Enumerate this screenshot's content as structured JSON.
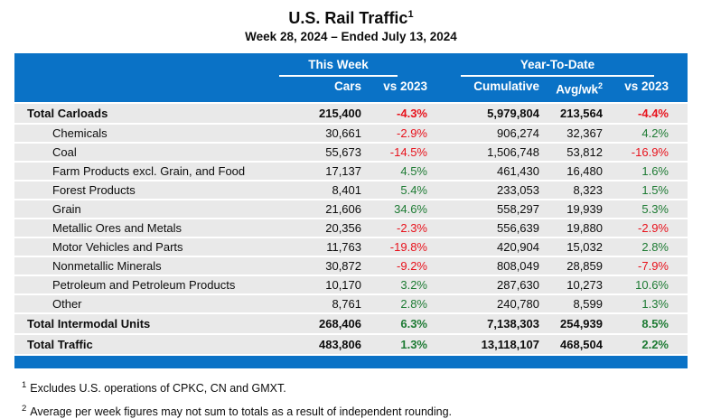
{
  "page": {
    "title": "U.S. Rail Traffic",
    "title_footnote_marker": "1",
    "subtitle": "Week 28, 2024 – Ended July 13, 2024"
  },
  "colors": {
    "header_blue": "#0a72c6",
    "row_gray": "#e9e9e9",
    "negative_red": "#e8121c",
    "positive_green": "#1e7b34"
  },
  "table": {
    "group_headers": {
      "this_week": "This Week",
      "year_to_date": "Year-To-Date"
    },
    "columns": {
      "cars": "Cars",
      "vs2023": "vs 2023",
      "cumulative": "Cumulative",
      "avgwk": "Avg/wk",
      "avgwk_footnote_marker": "2",
      "ytd_vs2023": "vs 2023"
    },
    "rows": [
      {
        "label": "Total Carloads",
        "type": "total",
        "cars": "215,400",
        "vs2023": "-4.3%",
        "cumulative": "5,979,804",
        "avgwk": "213,564",
        "ytd_vs2023": "-4.4%"
      },
      {
        "label": "Chemicals",
        "type": "sub",
        "cars": "30,661",
        "vs2023": "-2.9%",
        "cumulative": "906,274",
        "avgwk": "32,367",
        "ytd_vs2023": "4.2%"
      },
      {
        "label": "Coal",
        "type": "sub",
        "cars": "55,673",
        "vs2023": "-14.5%",
        "cumulative": "1,506,748",
        "avgwk": "53,812",
        "ytd_vs2023": "-16.9%"
      },
      {
        "label": "Farm Products excl. Grain, and Food",
        "type": "sub",
        "cars": "17,137",
        "vs2023": "4.5%",
        "cumulative": "461,430",
        "avgwk": "16,480",
        "ytd_vs2023": "1.6%"
      },
      {
        "label": "Forest Products",
        "type": "sub",
        "cars": "8,401",
        "vs2023": "5.4%",
        "cumulative": "233,053",
        "avgwk": "8,323",
        "ytd_vs2023": "1.5%"
      },
      {
        "label": "Grain",
        "type": "sub",
        "cars": "21,606",
        "vs2023": "34.6%",
        "cumulative": "558,297",
        "avgwk": "19,939",
        "ytd_vs2023": "5.3%"
      },
      {
        "label": "Metallic Ores and Metals",
        "type": "sub",
        "cars": "20,356",
        "vs2023": "-2.3%",
        "cumulative": "556,639",
        "avgwk": "19,880",
        "ytd_vs2023": "-2.9%"
      },
      {
        "label": "Motor Vehicles and Parts",
        "type": "sub",
        "cars": "11,763",
        "vs2023": "-19.8%",
        "cumulative": "420,904",
        "avgwk": "15,032",
        "ytd_vs2023": "2.8%"
      },
      {
        "label": "Nonmetallic Minerals",
        "type": "sub",
        "cars": "30,872",
        "vs2023": "-9.2%",
        "cumulative": "808,049",
        "avgwk": "28,859",
        "ytd_vs2023": "-7.9%"
      },
      {
        "label": "Petroleum and Petroleum Products",
        "type": "sub",
        "cars": "10,170",
        "vs2023": "3.2%",
        "cumulative": "287,630",
        "avgwk": "10,273",
        "ytd_vs2023": "10.6%"
      },
      {
        "label": "Other",
        "type": "sub",
        "cars": "8,761",
        "vs2023": "2.8%",
        "cumulative": "240,780",
        "avgwk": "8,599",
        "ytd_vs2023": "1.3%"
      },
      {
        "label": "Total Intermodal Units",
        "type": "total",
        "cars": "268,406",
        "vs2023": "6.3%",
        "cumulative": "7,138,303",
        "avgwk": "254,939",
        "ytd_vs2023": "8.5%"
      },
      {
        "label": "Total Traffic",
        "type": "total",
        "cars": "483,806",
        "vs2023": "1.3%",
        "cumulative": "13,118,107",
        "avgwk": "468,504",
        "ytd_vs2023": "2.2%"
      }
    ]
  },
  "footnotes": [
    {
      "marker": "1",
      "text": "Excludes U.S. operations of CPKC, CN and GMXT."
    },
    {
      "marker": "2",
      "text": "Average per week figures may not sum to totals as a result of independent rounding."
    }
  ]
}
